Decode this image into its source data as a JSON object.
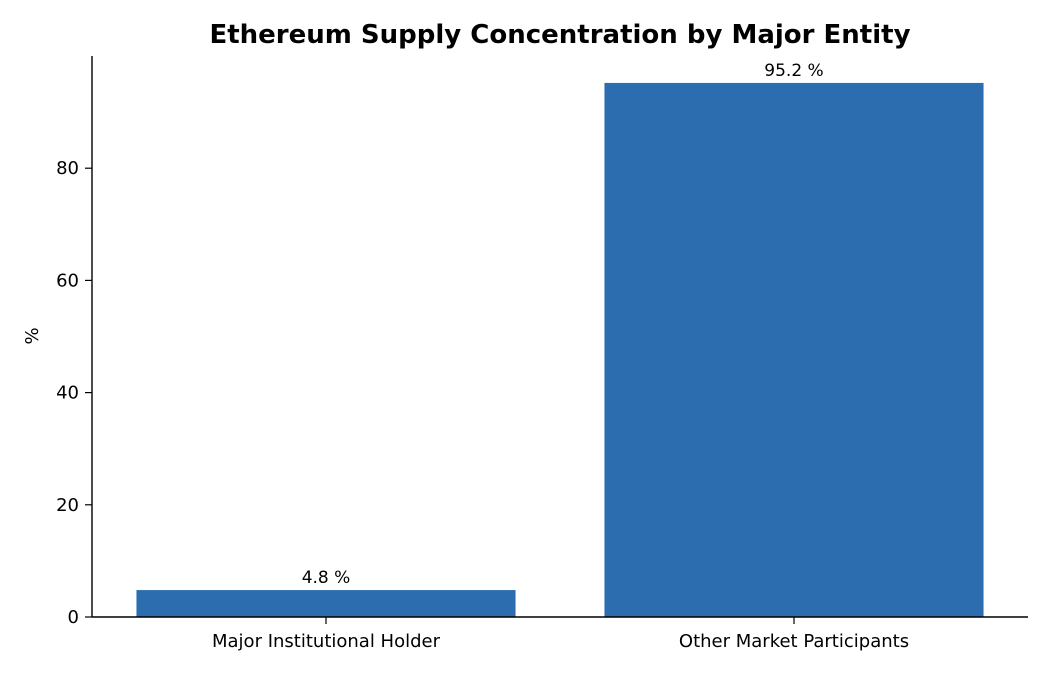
{
  "chart_data": {
    "type": "bar",
    "title": "Ethereum Supply Concentration by Major Entity",
    "xlabel": "",
    "ylabel": "%",
    "categories": [
      "Major Institutional Holder",
      "Other Market Participants"
    ],
    "values": [
      4.8,
      95.2
    ],
    "data_labels": [
      "4.8 %",
      "95.2 %"
    ],
    "ylim": [
      0,
      100
    ],
    "yticks": [
      0,
      20,
      40,
      60,
      80
    ],
    "grid": false,
    "legend": "none",
    "colors": {
      "bar": "#2c6db0",
      "axis": "#000000"
    }
  }
}
